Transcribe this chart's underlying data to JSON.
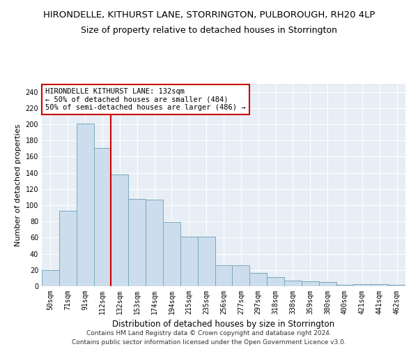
{
  "title": "HIRONDELLE, KITHURST LANE, STORRINGTON, PULBOROUGH, RH20 4LP",
  "subtitle": "Size of property relative to detached houses in Storrington",
  "xlabel": "Distribution of detached houses by size in Storrington",
  "ylabel": "Number of detached properties",
  "bar_values": [
    20,
    93,
    201,
    171,
    138,
    108,
    107,
    79,
    61,
    61,
    26,
    26,
    16,
    11,
    7,
    6,
    5,
    2,
    3,
    3,
    2
  ],
  "bar_labels": [
    "50sqm",
    "71sqm",
    "91sqm",
    "112sqm",
    "132sqm",
    "153sqm",
    "174sqm",
    "194sqm",
    "215sqm",
    "235sqm",
    "256sqm",
    "277sqm",
    "297sqm",
    "318sqm",
    "338sqm",
    "359sqm",
    "380sqm",
    "400sqm",
    "421sqm",
    "441sqm",
    "462sqm"
  ],
  "bar_color": "#ccdded",
  "bar_edge_color": "#7aaabb",
  "vline_x_index": 4,
  "vline_color": "#cc0000",
  "annotation_text": "HIRONDELLE KITHURST LANE: 132sqm\n← 50% of detached houses are smaller (484)\n50% of semi-detached houses are larger (486) →",
  "annotation_box_color": "#ffffff",
  "annotation_box_edge": "#cc0000",
  "ylim": [
    0,
    250
  ],
  "yticks": [
    0,
    20,
    40,
    60,
    80,
    100,
    120,
    140,
    160,
    180,
    200,
    220,
    240
  ],
  "footer1": "Contains HM Land Registry data © Crown copyright and database right 2024.",
  "footer2": "Contains public sector information licensed under the Open Government Licence v3.0.",
  "title_fontsize": 9.5,
  "subtitle_fontsize": 9,
  "ylabel_fontsize": 8,
  "xlabel_fontsize": 8.5,
  "tick_fontsize": 7,
  "annotation_fontsize": 7.5,
  "background_color": "#ffffff",
  "plot_background": "#e8eef5",
  "grid_color": "#ffffff"
}
